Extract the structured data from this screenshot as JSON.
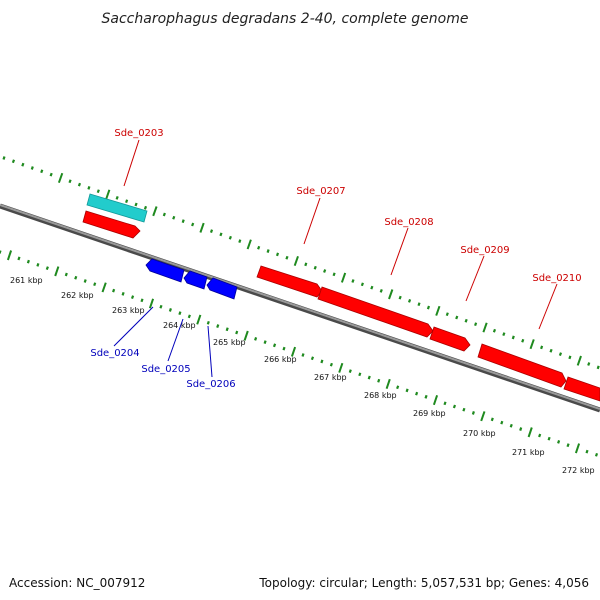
{
  "title": "Saccharophagus degradans 2-40, complete genome",
  "footer": {
    "accession": "Accession: NC_007912",
    "summary": "Topology: circular; Length: 5,057,531 bp; Genes: 4,056"
  },
  "colors": {
    "backbone": "#7a7a7a",
    "tick": "#1f8a1f",
    "forward_gene": "#ff0000",
    "reverse_gene": "#0000ff",
    "cds_feature": "#22cccc",
    "forward_label": "#cc0000",
    "reverse_label": "#0000bb"
  },
  "ruler": {
    "unit": "kbp",
    "labels": [
      "261 kbp",
      "262 kbp",
      "263 kbp",
      "264 kbp",
      "265 kbp",
      "266 kbp",
      "267 kbp",
      "268 kbp",
      "269 kbp",
      "270 kbp",
      "271 kbp",
      "272 kbp"
    ]
  },
  "genes": {
    "forward": [
      {
        "label": "Sde_0203"
      },
      {
        "label": "Sde_0207"
      },
      {
        "label": "Sde_0208"
      },
      {
        "label": "Sde_0209"
      },
      {
        "label": "Sde_0210"
      }
    ],
    "reverse": [
      {
        "label": "Sde_0204"
      },
      {
        "label": "Sde_0205"
      },
      {
        "label": "Sde_0206"
      }
    ]
  }
}
